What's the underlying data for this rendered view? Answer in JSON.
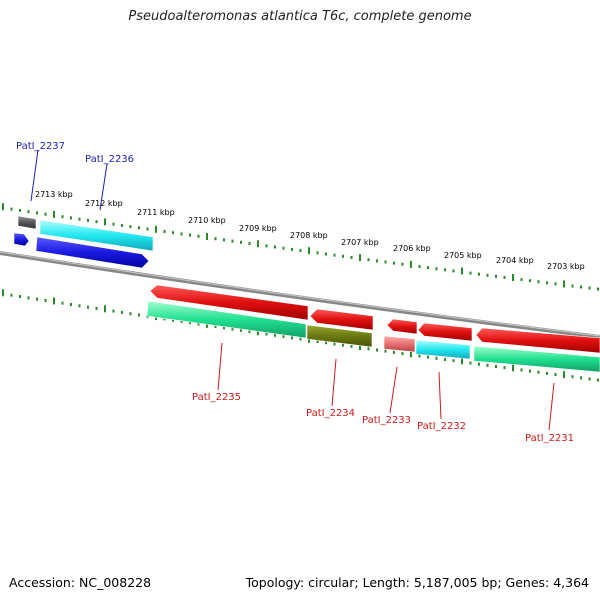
{
  "title": "Pseudoalteromonas atlantica T6c, complete genome",
  "footer": {
    "accession": "Accession: NC_008228",
    "summary": "Topology: circular; Length: 5,187,005 bp; Genes: 4,364"
  },
  "scale_labels": [
    "2713 kbp",
    "2712 kbp",
    "2711 kbp",
    "2710 kbp",
    "2709 kbp",
    "2708 kbp",
    "2707 kbp",
    "2706 kbp",
    "2705 kbp",
    "2704 kbp",
    "2703 kbp"
  ],
  "gene_labels": {
    "top": [
      "PatI_2237",
      "PatI_2236"
    ],
    "bottom": [
      "PatI_2235",
      "PatI_2234",
      "PatI_2233",
      "PatI_2232",
      "PatI_2231"
    ]
  },
  "colors": {
    "top_label": "#1f1fb0",
    "bottom_label": "#cc1a1a",
    "backbone": "#888888",
    "ticks": "#2a8a2a",
    "cds_red": "#e01010",
    "cds_blue": "#1a1ae0",
    "cds_cyan": "#22e8f0",
    "cds_green": "#20e090",
    "cds_olive": "#6b7a10",
    "cds_pink": "#e87070",
    "cds_gray": "#555555"
  }
}
